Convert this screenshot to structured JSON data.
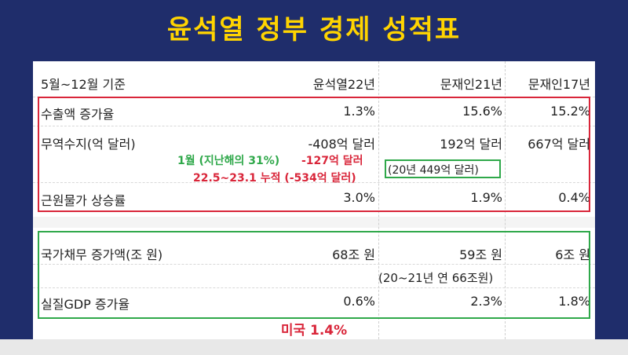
{
  "title": "윤석열 정부 경제 성적표",
  "table": {
    "header": {
      "label": "5월~12월 기준",
      "col1": "윤석열22년",
      "col2": "문재인21년",
      "col3": "문재인17년"
    },
    "rows": [
      {
        "label": "수출액 증가율",
        "c1": "1.3%",
        "c2": "15.6%",
        "c3": "15.2%"
      },
      {
        "label": "무역수지(억 달러)",
        "c1": "-408억 달러",
        "c2": "192억 달러",
        "c3": "667억 달러"
      },
      {
        "label": "근원물가 상승률",
        "c1": "3.0%",
        "c2": "1.9%",
        "c3": "0.4%"
      },
      {
        "label": "국가채무 증가액(조 원)",
        "c1": "68조 원",
        "c2": "59조 원",
        "c3": "6조 원"
      },
      {
        "label": "실질GDP 증가율",
        "c1": "0.6%",
        "c2": "2.3%",
        "c3": "1.8%"
      }
    ]
  },
  "annotations": {
    "jan_label": "1월 (지난해의 31%)",
    "jan_value": "-127억 달러",
    "cumulative": "22.5~23.1 누적 (-534억 달러)",
    "y20_trade": "(20년 449억 달러)",
    "debt_note": "(20~21년 연 66조원)",
    "usa_gdp": "미국 1.4%"
  },
  "colors": {
    "title": "#ffd400",
    "red": "#d9263a",
    "green": "#2fa84a",
    "background": "#1f2d6b"
  }
}
